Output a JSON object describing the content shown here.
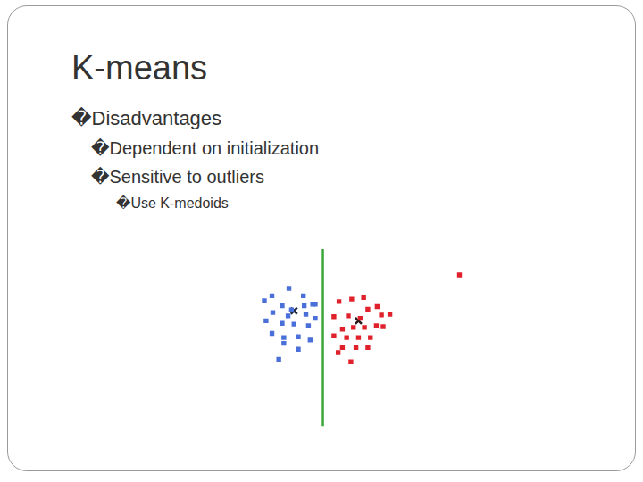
{
  "slide": {
    "title": "K-means",
    "bullets": [
      {
        "text": "�Disadvantages",
        "level": 1
      },
      {
        "text": "�Dependent on initialization",
        "level": 2
      },
      {
        "text": "�Sensitive to outliers",
        "level": 2
      },
      {
        "text": "�Use K-medoids",
        "level": 3
      }
    ]
  },
  "chart_data": {
    "type": "scatter",
    "xlim": [
      0,
      300
    ],
    "ylim": [
      0,
      230
    ],
    "grid": false,
    "tick_labels": false,
    "series": [
      {
        "color": "#4a6fd8",
        "marker": "square",
        "values": [
          [
            30,
            161
          ],
          [
            39,
            167
          ],
          [
            59,
            176
          ],
          [
            76,
            167
          ],
          [
            87,
            157
          ],
          [
            51,
            155
          ],
          [
            40,
            147
          ],
          [
            32,
            137
          ],
          [
            58,
            143
          ],
          [
            79,
            145
          ],
          [
            90,
            140
          ],
          [
            51,
            134
          ],
          [
            65,
            133
          ],
          [
            82,
            131
          ],
          [
            39,
            122
          ],
          [
            53,
            117
          ],
          [
            70,
            118
          ],
          [
            84,
            114
          ],
          [
            53,
            110
          ],
          [
            70,
            103
          ],
          [
            47,
            91
          ],
          [
            90,
            157
          ],
          [
            77,
            155
          ],
          [
            62,
            150
          ]
        ]
      },
      {
        "color": "#e0202a",
        "marker": "square",
        "values": [
          [
            118,
            160
          ],
          [
            133,
            163
          ],
          [
            147,
            165
          ],
          [
            129,
            143
          ],
          [
            112,
            142
          ],
          [
            152,
            151
          ],
          [
            168,
            144
          ],
          [
            178,
            145
          ],
          [
            163,
            154
          ],
          [
            122,
            127
          ],
          [
            135,
            129
          ],
          [
            148,
            129
          ],
          [
            162,
            131
          ],
          [
            112,
            119
          ],
          [
            127,
            117
          ],
          [
            141,
            117
          ],
          [
            155,
            117
          ],
          [
            122,
            105
          ],
          [
            138,
            105
          ],
          [
            152,
            105
          ],
          [
            132,
            88
          ],
          [
            117,
            99
          ],
          [
            170,
            130
          ],
          [
            143,
            140
          ],
          [
            260,
            192
          ]
        ]
      },
      {
        "color": "#1f2a44",
        "marker": "cross",
        "values": [
          [
            65,
            149
          ]
        ]
      },
      {
        "color": "#2a1a1a",
        "marker": "cross",
        "values": [
          [
            141,
            137
          ]
        ]
      },
      {
        "type": "line",
        "color": "#3aa83a",
        "line_style": "solid",
        "values": [
          [
            99,
            223
          ],
          [
            99,
            11
          ]
        ]
      }
    ]
  }
}
